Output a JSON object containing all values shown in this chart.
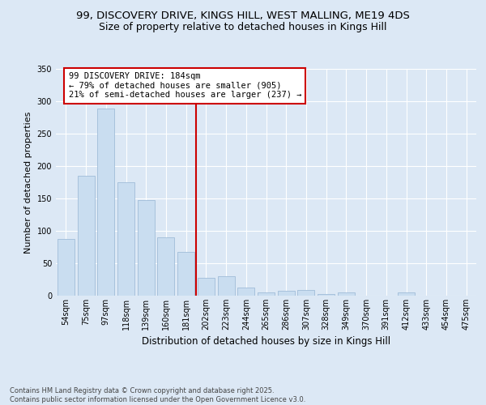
{
  "title_line1": "99, DISCOVERY DRIVE, KINGS HILL, WEST MALLING, ME19 4DS",
  "title_line2": "Size of property relative to detached houses in Kings Hill",
  "xlabel": "Distribution of detached houses by size in Kings Hill",
  "ylabel": "Number of detached properties",
  "categories": [
    "54sqm",
    "75sqm",
    "97sqm",
    "118sqm",
    "139sqm",
    "160sqm",
    "181sqm",
    "202sqm",
    "223sqm",
    "244sqm",
    "265sqm",
    "286sqm",
    "307sqm",
    "328sqm",
    "349sqm",
    "370sqm",
    "391sqm",
    "412sqm",
    "433sqm",
    "454sqm",
    "475sqm"
  ],
  "values": [
    88,
    185,
    289,
    175,
    148,
    90,
    68,
    28,
    30,
    13,
    5,
    7,
    9,
    3,
    5,
    0,
    0,
    5,
    0,
    0,
    0
  ],
  "bar_color": "#c9ddf0",
  "bar_edge_color": "#a0bcd8",
  "vline_pos": 6.5,
  "vline_color": "#cc0000",
  "annotation_title": "99 DISCOVERY DRIVE: 184sqm",
  "annotation_line2": "← 79% of detached houses are smaller (905)",
  "annotation_line3": "21% of semi-detached houses are larger (237) →",
  "annotation_box_edgecolor": "#cc0000",
  "ylim": [
    0,
    350
  ],
  "yticks": [
    0,
    50,
    100,
    150,
    200,
    250,
    300,
    350
  ],
  "background_color": "#dce8f5",
  "grid_color": "#ffffff",
  "footer_text": "Contains HM Land Registry data © Crown copyright and database right 2025.\nContains public sector information licensed under the Open Government Licence v3.0.",
  "title_fontsize": 9.5,
  "subtitle_fontsize": 9,
  "xlabel_fontsize": 8.5,
  "ylabel_fontsize": 8,
  "tick_fontsize": 7,
  "annotation_fontsize": 7.5,
  "footer_fontsize": 6
}
